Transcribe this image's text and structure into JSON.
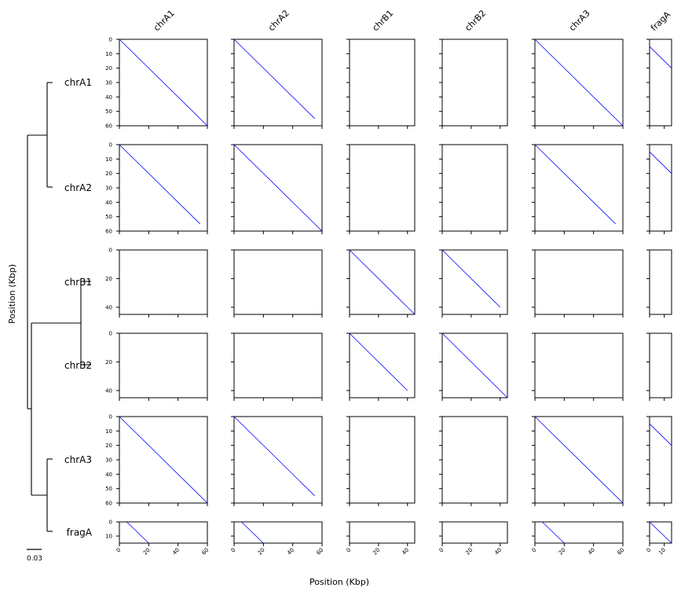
{
  "chart_data": {
    "type": "scatter",
    "subtype": "pairwise-dotplot-matrix",
    "xlabel": "Position (Kbp)",
    "ylabel": "Position (Kbp)",
    "sequences": [
      {
        "name": "chrA1",
        "length": 60
      },
      {
        "name": "chrA2",
        "length": 60
      },
      {
        "name": "chrB1",
        "length": 45
      },
      {
        "name": "chrB2",
        "length": 45
      },
      {
        "name": "chrA3",
        "length": 60
      },
      {
        "name": "fragA",
        "length": 15
      }
    ],
    "x_ticks": {
      "chrA1": [
        0,
        20,
        40,
        60
      ],
      "chrA2": [
        0,
        20,
        40,
        60
      ],
      "chrB1": [
        0,
        20,
        40
      ],
      "chrB2": [
        0,
        20,
        40
      ],
      "chrA3": [
        0,
        20,
        40,
        60
      ],
      "fragA": [
        0,
        10
      ]
    },
    "y_ticks": {
      "chrA1": [
        0,
        10,
        20,
        30,
        40,
        50,
        60
      ],
      "chrA2": [
        0,
        10,
        20,
        30,
        40,
        50,
        60
      ],
      "chrB1": [
        0,
        20,
        40
      ],
      "chrB2": [
        0,
        20,
        40
      ],
      "chrA3": [
        0,
        10,
        20,
        30,
        40,
        50,
        60
      ],
      "fragA": [
        0,
        10
      ]
    },
    "alignments": [
      {
        "row": "chrA1",
        "col": "chrA1",
        "x": [
          0,
          60
        ],
        "y": [
          0,
          60
        ]
      },
      {
        "row": "chrA1",
        "col": "chrA2",
        "x": [
          0,
          55
        ],
        "y": [
          0,
          55
        ]
      },
      {
        "row": "chrA1",
        "col": "chrA3",
        "x": [
          0,
          60
        ],
        "y": [
          0,
          60
        ]
      },
      {
        "row": "chrA1",
        "col": "fragA",
        "x": [
          0,
          15
        ],
        "y": [
          5,
          20
        ]
      },
      {
        "row": "chrA2",
        "col": "chrA1",
        "x": [
          0,
          55
        ],
        "y": [
          0,
          55
        ]
      },
      {
        "row": "chrA2",
        "col": "chrA2",
        "x": [
          0,
          60
        ],
        "y": [
          0,
          60
        ]
      },
      {
        "row": "chrA2",
        "col": "chrA3",
        "x": [
          0,
          55
        ],
        "y": [
          0,
          55
        ]
      },
      {
        "row": "chrA2",
        "col": "fragA",
        "x": [
          0,
          15
        ],
        "y": [
          5,
          20
        ]
      },
      {
        "row": "chrB1",
        "col": "chrB1",
        "x": [
          0,
          45
        ],
        "y": [
          0,
          45
        ]
      },
      {
        "row": "chrB1",
        "col": "chrB2",
        "x": [
          0,
          40
        ],
        "y": [
          0,
          40
        ]
      },
      {
        "row": "chrB2",
        "col": "chrB1",
        "x": [
          0,
          40
        ],
        "y": [
          0,
          40
        ]
      },
      {
        "row": "chrB2",
        "col": "chrB2",
        "x": [
          0,
          45
        ],
        "y": [
          0,
          45
        ]
      },
      {
        "row": "chrA3",
        "col": "chrA1",
        "x": [
          0,
          60
        ],
        "y": [
          0,
          60
        ]
      },
      {
        "row": "chrA3",
        "col": "chrA2",
        "x": [
          0,
          55
        ],
        "y": [
          0,
          55
        ]
      },
      {
        "row": "chrA3",
        "col": "chrA3",
        "x": [
          0,
          60
        ],
        "y": [
          0,
          60
        ]
      },
      {
        "row": "chrA3",
        "col": "fragA",
        "x": [
          0,
          15
        ],
        "y": [
          5,
          20
        ]
      },
      {
        "row": "fragA",
        "col": "chrA1",
        "x": [
          5,
          20
        ],
        "y": [
          0,
          15
        ]
      },
      {
        "row": "fragA",
        "col": "chrA2",
        "x": [
          5,
          20
        ],
        "y": [
          0,
          15
        ]
      },
      {
        "row": "fragA",
        "col": "chrA3",
        "x": [
          5,
          20
        ],
        "y": [
          0,
          15
        ]
      },
      {
        "row": "fragA",
        "col": "fragA",
        "x": [
          0,
          15
        ],
        "y": [
          0,
          15
        ]
      }
    ],
    "alignment_color": "#0000ff",
    "grid": false,
    "tree": {
      "scale_value": "0.03",
      "topology": "((chrA1,chrA2),((chrB1,chrB2),(chrA3,fragA)))"
    }
  }
}
